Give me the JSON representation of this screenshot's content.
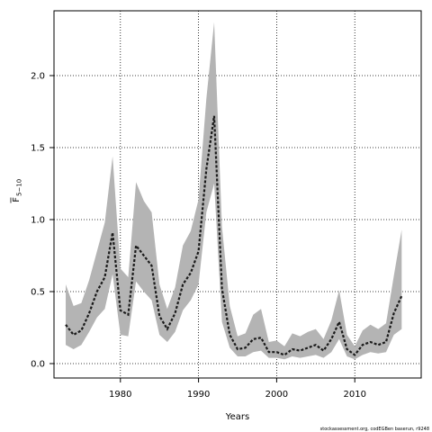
{
  "chart_data": {
    "type": "line",
    "xlabel": "Years",
    "ylabel": "F̄5−10",
    "ylabel_main": "F",
    "ylabel_sub": "5−10",
    "xlim": [
      1971.5,
      2018.5
    ],
    "ylim": [
      -0.1,
      2.45
    ],
    "xticks": [
      1980,
      1990,
      2000,
      2010
    ],
    "yticks": [
      0.0,
      0.5,
      1.0,
      1.5,
      2.0
    ],
    "ytick_labels": [
      "0.0",
      "0.5",
      "1.0",
      "1.5",
      "2.0"
    ],
    "grid": true,
    "footer": "stockassessment.org, codEGBen baserun, r9248",
    "colors": {
      "band": "#b4b4b4",
      "line": "#1a1a1a",
      "grid": "#000000"
    },
    "series": [
      {
        "x": [
          1973,
          1974,
          1975,
          1976,
          1977,
          1978,
          1979,
          1980,
          1981,
          1982,
          1983,
          1984,
          1985,
          1986,
          1987,
          1988,
          1989,
          1990,
          1991,
          1992,
          1993,
          1994,
          1995,
          1996,
          1997,
          1998,
          1999,
          2000,
          2001,
          2002,
          2003,
          2004,
          2005,
          2006,
          2007,
          2008,
          2009,
          2010,
          2011,
          2012,
          2013,
          2014,
          2015,
          2016
        ],
        "estimate": [
          0.27,
          0.2,
          0.23,
          0.35,
          0.5,
          0.6,
          0.91,
          0.37,
          0.34,
          0.82,
          0.75,
          0.68,
          0.33,
          0.24,
          0.35,
          0.55,
          0.63,
          0.78,
          1.35,
          1.72,
          0.52,
          0.2,
          0.1,
          0.11,
          0.17,
          0.18,
          0.08,
          0.08,
          0.06,
          0.1,
          0.09,
          0.11,
          0.13,
          0.09,
          0.17,
          0.29,
          0.1,
          0.06,
          0.13,
          0.15,
          0.13,
          0.15,
          0.35,
          0.47
        ],
        "lower": [
          0.13,
          0.1,
          0.13,
          0.22,
          0.32,
          0.38,
          0.62,
          0.2,
          0.19,
          0.57,
          0.5,
          0.44,
          0.2,
          0.15,
          0.22,
          0.37,
          0.44,
          0.55,
          1.05,
          1.25,
          0.29,
          0.11,
          0.05,
          0.05,
          0.08,
          0.09,
          0.04,
          0.04,
          0.03,
          0.05,
          0.04,
          0.05,
          0.06,
          0.04,
          0.08,
          0.17,
          0.05,
          0.03,
          0.06,
          0.08,
          0.07,
          0.08,
          0.2,
          0.24
        ],
        "upper": [
          0.55,
          0.4,
          0.42,
          0.58,
          0.78,
          0.98,
          1.44,
          0.66,
          0.6,
          1.26,
          1.13,
          1.05,
          0.55,
          0.38,
          0.53,
          0.82,
          0.92,
          1.14,
          1.84,
          2.37,
          0.95,
          0.4,
          0.19,
          0.21,
          0.34,
          0.38,
          0.15,
          0.16,
          0.12,
          0.21,
          0.19,
          0.22,
          0.24,
          0.17,
          0.3,
          0.51,
          0.2,
          0.12,
          0.23,
          0.27,
          0.24,
          0.28,
          0.61,
          0.93
        ]
      }
    ]
  }
}
